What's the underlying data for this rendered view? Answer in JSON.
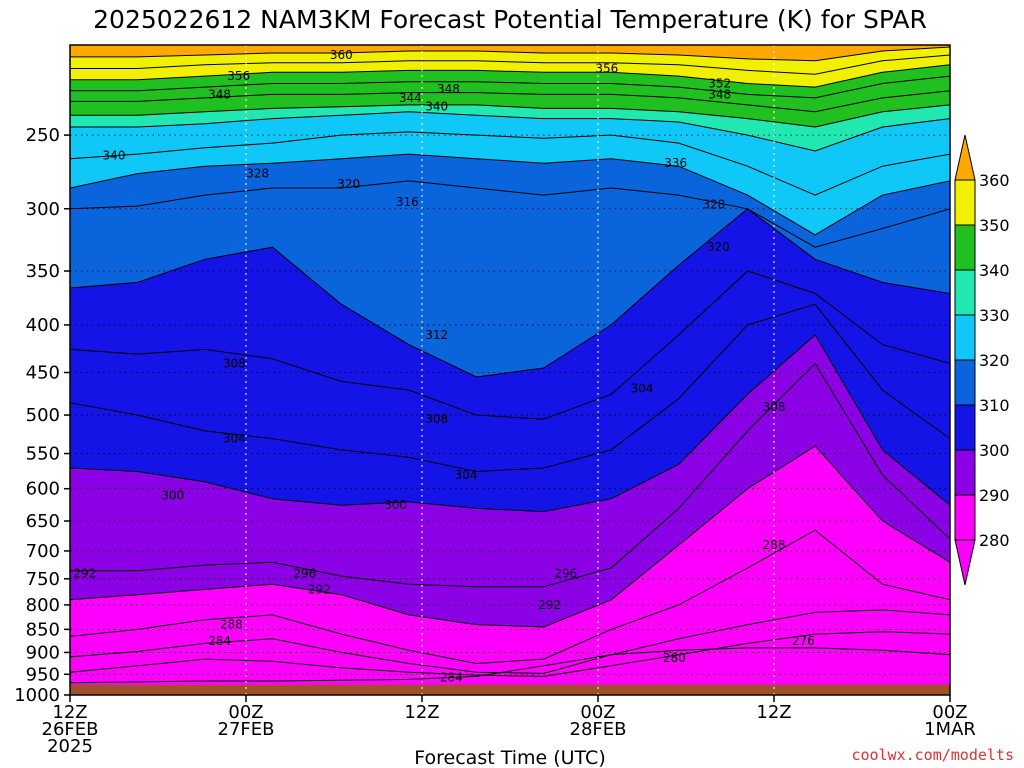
{
  "chart_data": {
    "type": "contour",
    "title": "2025022612 NAM3KM Forecast Potential Temperature (K) for SPAR",
    "xlabel": "Forecast Time (UTC)",
    "ylabel": "",
    "credit": "coolwx.com/modelts",
    "ylim_hpa": [
      1000,
      200
    ],
    "y_scale": "log",
    "y_ticks": [
      "250",
      "300",
      "350",
      "400",
      "450",
      "500",
      "550",
      "600",
      "650",
      "700",
      "750",
      "800",
      "850",
      "900",
      "950",
      "1000"
    ],
    "x_ticks": [
      {
        "hours": 0,
        "l1": "12Z",
        "l2": "26FEB",
        "l3": "2025"
      },
      {
        "hours": 12,
        "l1": "00Z",
        "l2": "27FEB",
        "l3": ""
      },
      {
        "hours": 24,
        "l1": "12Z",
        "l2": "",
        "l3": ""
      },
      {
        "hours": 36,
        "l1": "00Z",
        "l2": "28FEB",
        "l3": ""
      },
      {
        "hours": 48,
        "l1": "12Z",
        "l2": "",
        "l3": ""
      },
      {
        "hours": 60,
        "l1": "00Z",
        "l2": "1MAR",
        "l3": ""
      }
    ],
    "x_range_hours": [
      0,
      60
    ],
    "grid": true,
    "colorbar": {
      "levels": [
        "280",
        "290",
        "300",
        "310",
        "320",
        "330",
        "340",
        "350",
        "360"
      ],
      "colors": [
        "#ff00ff",
        "#8c00e6",
        "#1414e6",
        "#0a64dc",
        "#10c8f8",
        "#20e8b0",
        "#20c020",
        "#f0f000",
        "#ffa800"
      ],
      "extend": "both"
    },
    "ground_color": "#a05028",
    "isentropes_K": [
      {
        "theta": 276,
        "pressure_hpa": [
          970,
          968,
          966,
          966,
          964,
          962,
          955,
          930,
          905,
          895,
          890,
          890,
          895,
          905
        ]
      },
      {
        "theta": 280,
        "pressure_hpa": [
          945,
          930,
          915,
          920,
          935,
          945,
          952,
          955,
          930,
          905,
          880,
          860,
          855,
          860
        ]
      },
      {
        "theta": 284,
        "pressure_hpa": [
          910,
          898,
          880,
          870,
          900,
          925,
          945,
          948,
          905,
          870,
          840,
          815,
          810,
          820
        ]
      },
      {
        "theta": 288,
        "pressure_hpa": [
          865,
          850,
          830,
          820,
          860,
          895,
          925,
          915,
          850,
          800,
          730,
          665,
          760,
          790
        ]
      },
      {
        "theta": 292,
        "pressure_hpa": [
          790,
          780,
          770,
          760,
          780,
          820,
          840,
          845,
          790,
          690,
          600,
          540,
          650,
          720
        ]
      },
      {
        "theta": 296,
        "pressure_hpa": [
          735,
          735,
          725,
          720,
          745,
          760,
          765,
          765,
          730,
          630,
          520,
          440,
          580,
          680
        ]
      },
      {
        "theta": 300,
        "pressure_hpa": [
          570,
          575,
          590,
          615,
          625,
          620,
          630,
          635,
          615,
          565,
          475,
          410,
          545,
          625
        ]
      },
      {
        "theta": 304,
        "pressure_hpa": [
          485,
          500,
          520,
          530,
          545,
          555,
          575,
          570,
          545,
          480,
          400,
          380,
          470,
          530
        ]
      },
      {
        "theta": 308,
        "pressure_hpa": [
          425,
          430,
          425,
          435,
          460,
          470,
          500,
          505,
          475,
          410,
          350,
          370,
          420,
          440
        ]
      },
      {
        "theta": 312,
        "pressure_hpa": [
          365,
          360,
          340,
          330,
          380,
          420,
          455,
          445,
          400,
          345,
          300,
          340,
          360,
          370
        ]
      },
      {
        "theta": 316,
        "pressure_hpa": [
          300,
          298,
          290,
          285,
          285,
          280,
          285,
          290,
          285,
          290,
          300,
          330,
          315,
          300
        ]
      },
      {
        "theta": 320,
        "pressure_hpa": [
          285,
          275,
          270,
          268,
          265,
          262,
          265,
          268,
          265,
          270,
          290,
          320,
          290,
          280
        ]
      },
      {
        "theta": 328,
        "pressure_hpa": [
          265,
          262,
          258,
          255,
          250,
          248,
          250,
          252,
          250,
          255,
          270,
          290,
          270,
          262
        ]
      },
      {
        "theta": 336,
        "pressure_hpa": [
          245,
          245,
          243,
          240,
          238,
          236,
          238,
          240,
          240,
          242,
          250,
          260,
          245,
          240
        ]
      },
      {
        "theta": 340,
        "pressure_hpa": [
          238,
          238,
          236,
          234,
          233,
          232,
          232,
          234,
          234,
          236,
          240,
          245,
          236,
          232
        ]
      },
      {
        "theta": 344,
        "pressure_hpa": [
          230,
          230,
          228,
          226,
          226,
          225,
          225,
          226,
          226,
          228,
          232,
          236,
          228,
          224
        ]
      },
      {
        "theta": 348,
        "pressure_hpa": [
          224,
          224,
          222,
          220,
          220,
          219,
          219,
          220,
          220,
          222,
          226,
          228,
          220,
          216
        ]
      },
      {
        "theta": 352,
        "pressure_hpa": [
          218,
          218,
          216,
          214,
          214,
          213,
          213,
          214,
          214,
          216,
          220,
          222,
          214,
          210
        ]
      },
      {
        "theta": 356,
        "pressure_hpa": [
          212,
          212,
          210,
          209,
          209,
          208,
          208,
          209,
          209,
          210,
          213,
          215,
          208,
          205
        ]
      },
      {
        "theta": 360,
        "pressure_hpa": [
          206,
          206,
          205,
          204,
          204,
          203,
          203,
          204,
          204,
          205,
          207,
          208,
          203,
          201
        ]
      }
    ],
    "isentrope_times_hours": [
      0,
      4.6,
      9.2,
      13.8,
      18.5,
      23.1,
      27.7,
      32.3,
      36.9,
      41.5,
      46.2,
      50.8,
      55.4,
      60
    ],
    "contour_labels": [
      {
        "text": "360",
        "t": 18.5,
        "p": 205
      },
      {
        "text": "356",
        "t": 11.5,
        "p": 216
      },
      {
        "text": "348",
        "t": 25.8,
        "p": 223
      },
      {
        "text": "344",
        "t": 23.2,
        "p": 228
      },
      {
        "text": "340",
        "t": 25.0,
        "p": 233
      },
      {
        "text": "356",
        "t": 36.6,
        "p": 212
      },
      {
        "text": "352",
        "t": 44.3,
        "p": 220
      },
      {
        "text": "348",
        "t": 44.3,
        "p": 226
      },
      {
        "text": "348",
        "t": 10.2,
        "p": 226
      },
      {
        "text": "340",
        "t": 3.0,
        "p": 263
      },
      {
        "text": "328",
        "t": 12.8,
        "p": 275
      },
      {
        "text": "320",
        "t": 19.0,
        "p": 282
      },
      {
        "text": "316",
        "t": 23.0,
        "p": 295
      },
      {
        "text": "336",
        "t": 41.3,
        "p": 268
      },
      {
        "text": "328",
        "t": 43.9,
        "p": 297
      },
      {
        "text": "320",
        "t": 44.2,
        "p": 330
      },
      {
        "text": "312",
        "t": 25.0,
        "p": 410
      },
      {
        "text": "308",
        "t": 11.2,
        "p": 440
      },
      {
        "text": "304",
        "t": 39.0,
        "p": 468
      },
      {
        "text": "308",
        "t": 48.0,
        "p": 490
      },
      {
        "text": "308",
        "t": 25.0,
        "p": 505
      },
      {
        "text": "304",
        "t": 11.2,
        "p": 530
      },
      {
        "text": "304",
        "t": 27.0,
        "p": 580
      },
      {
        "text": "300",
        "t": 7.0,
        "p": 610
      },
      {
        "text": "300",
        "t": 22.2,
        "p": 625
      },
      {
        "text": "288",
        "t": 48.0,
        "p": 690
      },
      {
        "text": "292",
        "t": 1.0,
        "p": 740
      },
      {
        "text": "296",
        "t": 16.0,
        "p": 740
      },
      {
        "text": "292",
        "t": 17.0,
        "p": 770
      },
      {
        "text": "296",
        "t": 33.8,
        "p": 740
      },
      {
        "text": "292",
        "t": 32.7,
        "p": 800
      },
      {
        "text": "288",
        "t": 11.0,
        "p": 840
      },
      {
        "text": "284",
        "t": 10.2,
        "p": 875
      },
      {
        "text": "276",
        "t": 50.0,
        "p": 875
      },
      {
        "text": "280",
        "t": 41.2,
        "p": 912
      },
      {
        "text": "284",
        "t": 26.0,
        "p": 958
      }
    ]
  }
}
